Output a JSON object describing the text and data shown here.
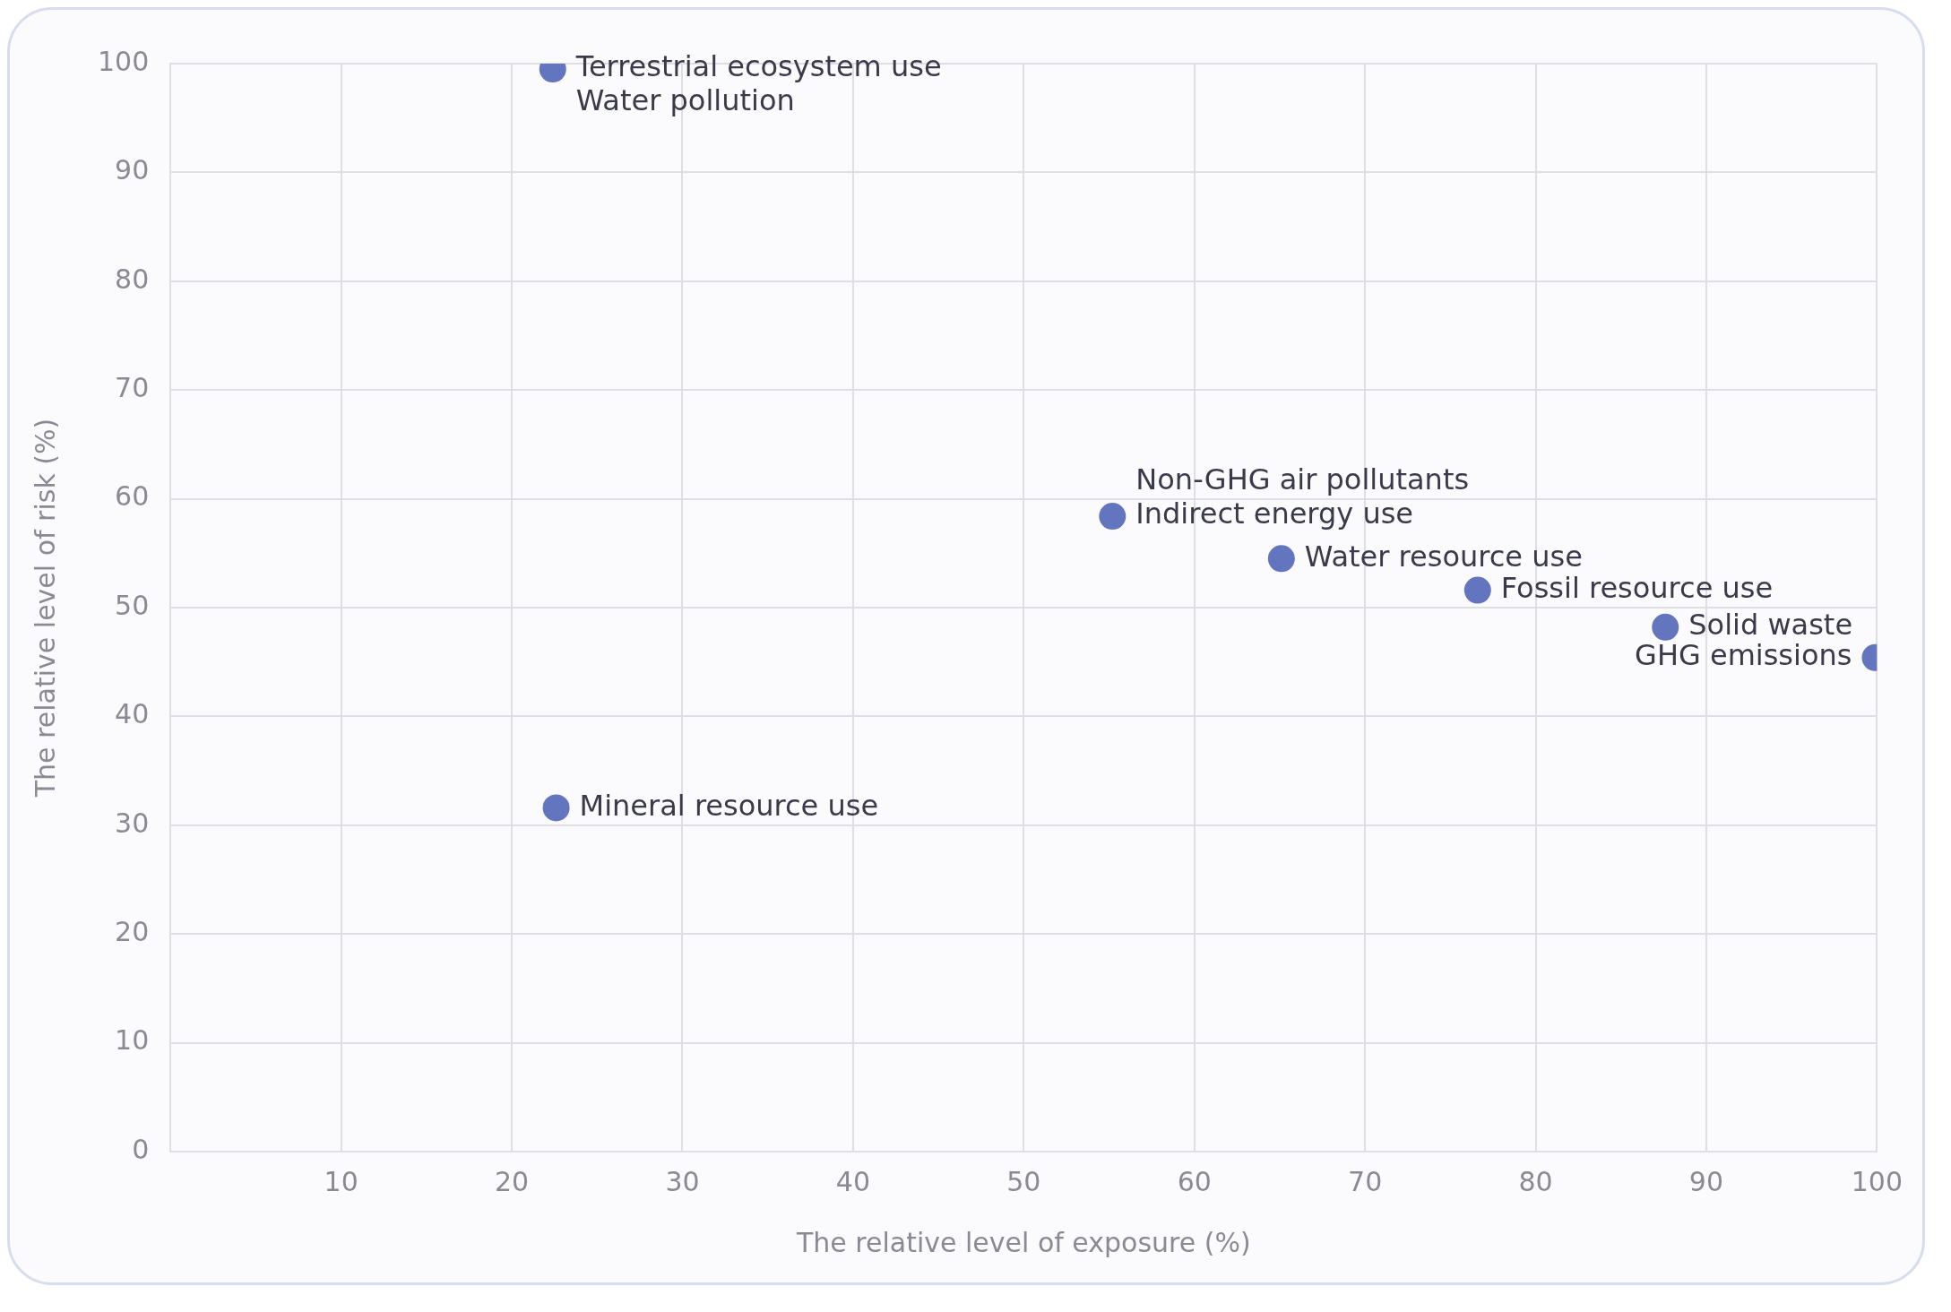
{
  "chart_data": {
    "type": "scatter",
    "xlabel": "The relative level of exposure (%)",
    "ylabel": "The relative level of risk (%)",
    "x": [
      22.4,
      22.6,
      55.2,
      65.1,
      76.6,
      87.6,
      99.9
    ],
    "series": [
      {
        "color": "#6475c0",
        "values": [
          99.5,
          31.6,
          58.4,
          54.5,
          51.6,
          48.2,
          45.4
        ]
      }
    ],
    "xlim": [
      0,
      100
    ],
    "ylim": [
      0,
      100
    ],
    "xticks": [
      {
        "value": 0,
        "label": null
      },
      10,
      20,
      30,
      40,
      50,
      60,
      70,
      80,
      90,
      100
    ],
    "yticks": [
      0,
      10,
      20,
      30,
      40,
      50,
      60,
      70,
      80,
      90,
      100
    ],
    "grid": true,
    "legend": false,
    "marker": "circle",
    "annotations": [
      {
        "text": "Terrestrial ecosystem use",
        "x": 22.4,
        "y": 99.5
      },
      {
        "text": "Water pollution",
        "x": 22.4,
        "y": 99.5
      },
      {
        "text": "Mineral resource use",
        "x": 22.6,
        "y": 31.6
      },
      {
        "text": "Non-GHG air pollutants",
        "x": 55.2,
        "y": 58.4
      },
      {
        "text": "Indirect energy use",
        "x": 55.2,
        "y": 58.4
      },
      {
        "text": "Water resource use",
        "x": 65.1,
        "y": 54.5
      },
      {
        "text": "Fossil resource use",
        "x": 76.6,
        "y": 51.6
      },
      {
        "text": "Solid waste",
        "x": 87.6,
        "y": 48.2
      },
      {
        "text": "GHG emissions",
        "x": 99.9,
        "y": 45.4
      }
    ]
  }
}
